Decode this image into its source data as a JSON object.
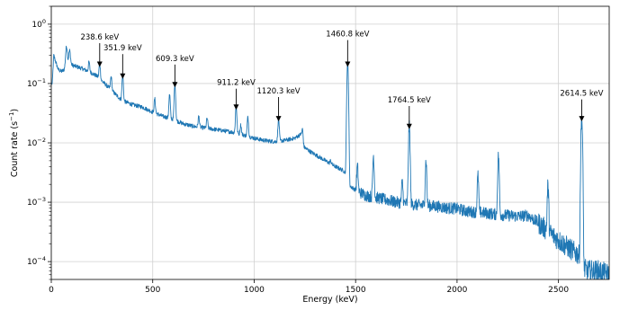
{
  "chart_data": {
    "type": "line",
    "title": "",
    "xlabel": "Energy (keV)",
    "ylabel_main": "Count rate (s",
    "ylabel_sup": "−1",
    "ylabel_end": ")",
    "xlim": [
      0,
      2750
    ],
    "ylim": [
      5e-05,
      2
    ],
    "yscale": "log",
    "grid": true,
    "color": "#1f77b4",
    "xticks": [
      {
        "value": 0,
        "label": "0"
      },
      {
        "value": 500,
        "label": "500"
      },
      {
        "value": 1000,
        "label": "1000"
      },
      {
        "value": 1500,
        "label": "1500"
      },
      {
        "value": 2000,
        "label": "2000"
      },
      {
        "value": 2500,
        "label": "2500"
      }
    ],
    "yticks": [
      {
        "value": 0.0001,
        "base": "10",
        "exp": "−4"
      },
      {
        "value": 0.001,
        "base": "10",
        "exp": "−3"
      },
      {
        "value": 0.01,
        "base": "10",
        "exp": "−2"
      },
      {
        "value": 0.1,
        "base": "10",
        "exp": "−1"
      },
      {
        "value": 1,
        "base": "10",
        "exp": "0"
      }
    ],
    "baseline": [
      [
        5,
        0.1
      ],
      [
        12,
        0.3
      ],
      [
        22,
        0.23
      ],
      [
        35,
        0.17
      ],
      [
        50,
        0.16
      ],
      [
        75,
        0.18
      ],
      [
        90,
        0.21
      ],
      [
        110,
        0.2
      ],
      [
        150,
        0.18
      ],
      [
        200,
        0.15
      ],
      [
        230,
        0.13
      ],
      [
        250,
        0.11
      ],
      [
        300,
        0.075
      ],
      [
        340,
        0.055
      ],
      [
        360,
        0.05
      ],
      [
        400,
        0.044
      ],
      [
        450,
        0.04
      ],
      [
        500,
        0.033
      ],
      [
        550,
        0.028
      ],
      [
        600,
        0.025
      ],
      [
        650,
        0.021
      ],
      [
        700,
        0.019
      ],
      [
        750,
        0.018
      ],
      [
        800,
        0.017
      ],
      [
        850,
        0.016
      ],
      [
        900,
        0.015
      ],
      [
        950,
        0.0135
      ],
      [
        1000,
        0.012
      ],
      [
        1050,
        0.011
      ],
      [
        1100,
        0.0105
      ],
      [
        1150,
        0.011
      ],
      [
        1200,
        0.012
      ],
      [
        1230,
        0.014
      ],
      [
        1245,
        0.0085
      ],
      [
        1280,
        0.007
      ],
      [
        1320,
        0.0058
      ],
      [
        1360,
        0.0048
      ],
      [
        1400,
        0.004
      ],
      [
        1440,
        0.0034
      ],
      [
        1455,
        0.003
      ],
      [
        1470,
        0.0019
      ],
      [
        1500,
        0.0016
      ],
      [
        1550,
        0.0013
      ],
      [
        1600,
        0.0012
      ],
      [
        1650,
        0.0011
      ],
      [
        1700,
        0.001
      ],
      [
        1750,
        0.00095
      ],
      [
        1800,
        0.0009
      ],
      [
        1850,
        0.00088
      ],
      [
        1900,
        0.00085
      ],
      [
        1950,
        0.0008
      ],
      [
        2000,
        0.00078
      ],
      [
        2050,
        0.0007
      ],
      [
        2100,
        0.00068
      ],
      [
        2150,
        0.00065
      ],
      [
        2200,
        0.00062
      ],
      [
        2250,
        0.0006
      ],
      [
        2300,
        0.00058
      ],
      [
        2350,
        0.0006
      ],
      [
        2400,
        0.00045
      ],
      [
        2450,
        0.00032
      ],
      [
        2500,
        0.00023
      ],
      [
        2550,
        0.00017
      ],
      [
        2600,
        0.00013
      ],
      [
        2615,
        8e-05
      ],
      [
        2640,
        7e-05
      ],
      [
        2700,
        7e-05
      ],
      [
        2750,
        6e-05
      ]
    ],
    "peaks": [
      {
        "x": 75,
        "y": 0.42,
        "w": 4
      },
      {
        "x": 90,
        "y": 0.36,
        "w": 4
      },
      {
        "x": 186,
        "y": 0.23,
        "w": 3
      },
      {
        "x": 238.6,
        "y": 0.22,
        "w": 3
      },
      {
        "x": 295,
        "y": 0.13,
        "w": 3
      },
      {
        "x": 351.9,
        "y": 0.14,
        "w": 3
      },
      {
        "x": 510,
        "y": 0.055,
        "w": 3
      },
      {
        "x": 583,
        "y": 0.065,
        "w": 3
      },
      {
        "x": 609.3,
        "y": 0.1,
        "w": 3
      },
      {
        "x": 727,
        "y": 0.028,
        "w": 3
      },
      {
        "x": 768,
        "y": 0.026,
        "w": 3
      },
      {
        "x": 911.2,
        "y": 0.042,
        "w": 3
      },
      {
        "x": 934,
        "y": 0.02,
        "w": 3
      },
      {
        "x": 969,
        "y": 0.027,
        "w": 3
      },
      {
        "x": 1120.3,
        "y": 0.026,
        "w": 3
      },
      {
        "x": 1238,
        "y": 0.017,
        "w": 3
      },
      {
        "x": 1377,
        "y": 0.005,
        "w": 3
      },
      {
        "x": 1460.8,
        "y": 0.22,
        "w": 3
      },
      {
        "x": 1509,
        "y": 0.004,
        "w": 3
      },
      {
        "x": 1588,
        "y": 0.006,
        "w": 3
      },
      {
        "x": 1730,
        "y": 0.0022,
        "w": 3
      },
      {
        "x": 1764.5,
        "y": 0.019,
        "w": 3
      },
      {
        "x": 1847,
        "y": 0.005,
        "w": 3
      },
      {
        "x": 2103,
        "y": 0.0028,
        "w": 3
      },
      {
        "x": 2204,
        "y": 0.006,
        "w": 3
      },
      {
        "x": 2448,
        "y": 0.0018,
        "w": 3
      },
      {
        "x": 2614.5,
        "y": 0.026,
        "w": 3
      }
    ],
    "annotations": [
      {
        "label": "238.6 keV",
        "x": 238.6,
        "y_text": 0.55,
        "y_head": 0.19
      },
      {
        "label": "351.9 keV",
        "x": 351.9,
        "y_text": 0.36,
        "y_head": 0.12
      },
      {
        "label": "609.3 keV",
        "x": 609.3,
        "y_text": 0.24,
        "y_head": 0.086
      },
      {
        "label": "911.2 keV",
        "x": 911.2,
        "y_text": 0.094,
        "y_head": 0.036
      },
      {
        "label": "1120.3 keV",
        "x": 1120.3,
        "y_text": 0.068,
        "y_head": 0.023
      },
      {
        "label": "1460.8 keV",
        "x": 1460.8,
        "y_text": 0.62,
        "y_head": 0.19
      },
      {
        "label": "1764.5 keV",
        "x": 1764.5,
        "y_text": 0.048,
        "y_head": 0.017
      },
      {
        "label": "2614.5 keV",
        "x": 2614.5,
        "y_text": 0.062,
        "y_head": 0.023
      }
    ]
  }
}
